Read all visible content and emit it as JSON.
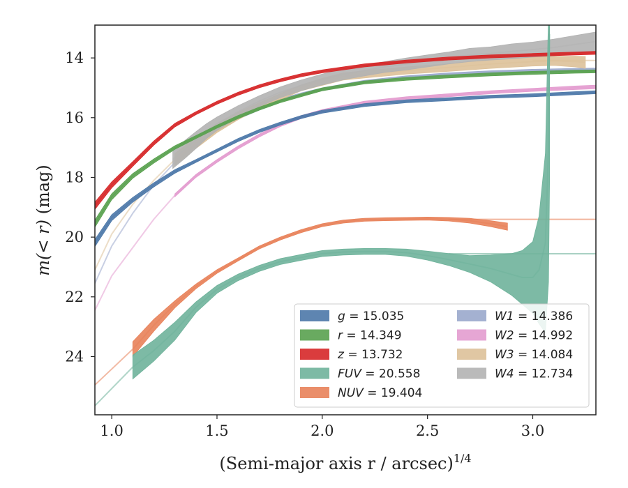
{
  "chart_data": {
    "type": "line",
    "xlabel": "(Semi-major axis r / arcsec)",
    "xlabel_exponent": "1/4",
    "ylabel_prefix": "m(< r) ",
    "ylabel_suffix": "(mag)",
    "xlim": [
      0.92,
      3.3
    ],
    "ylim": [
      25.95,
      12.9
    ],
    "y_inverted": true,
    "xticks": [
      1.0,
      1.5,
      2.0,
      2.5,
      3.0
    ],
    "xtick_labels": [
      "1.0",
      "1.5",
      "2.0",
      "2.5",
      "3.0"
    ],
    "yticks": [
      14,
      16,
      18,
      20,
      22,
      24
    ],
    "ytick_labels": [
      "14",
      "16",
      "18",
      "20",
      "22",
      "24"
    ],
    "grid": false,
    "legend_position": "lower-right",
    "series": [
      {
        "name": "g = 15.035",
        "label": "g",
        "total": "15.035",
        "color": "#4c78a8",
        "x": [
          0.92,
          1.0,
          1.1,
          1.2,
          1.3,
          1.4,
          1.5,
          1.6,
          1.7,
          1.8,
          1.9,
          2.0,
          2.2,
          2.4,
          2.6,
          2.8,
          3.0,
          3.2,
          3.3
        ],
        "y": [
          20.2,
          19.35,
          18.75,
          18.25,
          17.8,
          17.45,
          17.1,
          16.75,
          16.45,
          16.2,
          15.98,
          15.8,
          15.58,
          15.45,
          15.38,
          15.3,
          15.25,
          15.18,
          15.15
        ],
        "halfwidth": [
          0.12,
          0.1,
          0.08,
          0.07,
          0.06,
          0.05,
          0.05,
          0.05,
          0.05,
          0.05,
          0.05,
          0.05,
          0.05,
          0.05,
          0.05,
          0.05,
          0.05,
          0.05,
          0.05
        ]
      },
      {
        "name": "r = 14.349",
        "label": "r",
        "total": "14.349",
        "color": "#59a14f",
        "x": [
          0.92,
          1.0,
          1.1,
          1.2,
          1.3,
          1.4,
          1.5,
          1.6,
          1.7,
          1.8,
          1.9,
          2.0,
          2.2,
          2.4,
          2.6,
          2.8,
          3.0,
          3.2,
          3.3
        ],
        "y": [
          19.55,
          18.65,
          17.95,
          17.45,
          17.0,
          16.65,
          16.3,
          15.98,
          15.7,
          15.45,
          15.25,
          15.05,
          14.82,
          14.7,
          14.62,
          14.55,
          14.5,
          14.46,
          14.45
        ],
        "halfwidth": [
          0.12,
          0.1,
          0.08,
          0.07,
          0.06,
          0.05,
          0.05,
          0.05,
          0.05,
          0.05,
          0.05,
          0.05,
          0.05,
          0.05,
          0.05,
          0.05,
          0.05,
          0.05,
          0.05
        ]
      },
      {
        "name": "z = 13.732",
        "label": "z",
        "total": "13.732",
        "color": "#d62728",
        "x": [
          0.92,
          1.0,
          1.1,
          1.2,
          1.3,
          1.4,
          1.5,
          1.6,
          1.7,
          1.8,
          1.9,
          2.0,
          2.2,
          2.4,
          2.6,
          2.8,
          3.0,
          3.2,
          3.3
        ],
        "y": [
          18.95,
          18.25,
          17.55,
          16.85,
          16.25,
          15.85,
          15.5,
          15.2,
          14.95,
          14.75,
          14.58,
          14.45,
          14.25,
          14.12,
          14.02,
          13.95,
          13.9,
          13.85,
          13.83
        ],
        "halfwidth": [
          0.12,
          0.1,
          0.08,
          0.07,
          0.06,
          0.05,
          0.05,
          0.05,
          0.05,
          0.05,
          0.05,
          0.05,
          0.05,
          0.05,
          0.05,
          0.05,
          0.05,
          0.05,
          0.05
        ]
      },
      {
        "name": "FUV = 20.558",
        "label": "FUV",
        "total": "20.558",
        "color": "#6fb39b",
        "x": [
          1.1,
          1.2,
          1.3,
          1.4,
          1.5,
          1.6,
          1.7,
          1.8,
          1.9,
          2.0,
          2.1,
          2.2,
          2.3,
          2.4,
          2.5,
          2.6,
          2.7,
          2.8,
          2.9,
          2.95,
          3.0,
          3.03,
          3.06,
          3.075,
          3.08
        ],
        "y": [
          24.35,
          23.8,
          23.15,
          22.35,
          21.75,
          21.35,
          21.05,
          20.82,
          20.68,
          20.55,
          20.5,
          20.48,
          20.48,
          20.52,
          20.62,
          20.75,
          20.9,
          21.05,
          21.25,
          21.35,
          21.35,
          21.1,
          20.2,
          17.0,
          13.2
        ],
        "halfwidth": [
          0.4,
          0.35,
          0.3,
          0.18,
          0.13,
          0.11,
          0.1,
          0.1,
          0.1,
          0.1,
          0.1,
          0.1,
          0.1,
          0.12,
          0.15,
          0.2,
          0.28,
          0.45,
          0.7,
          0.9,
          1.2,
          1.8,
          3.0,
          4.5,
          5.0
        ],
        "extrap_x": [
          0.92,
          1.1
        ],
        "extrap_y": [
          25.65,
          24.35
        ],
        "flat_x": [
          2.6,
          3.3
        ],
        "flat_y": 20.558
      },
      {
        "name": "NUV = 19.404",
        "label": "NUV",
        "total": "19.404",
        "color": "#e8825a",
        "x": [
          1.1,
          1.2,
          1.3,
          1.4,
          1.5,
          1.6,
          1.7,
          1.8,
          1.9,
          2.0,
          2.1,
          2.2,
          2.3,
          2.4,
          2.5,
          2.6,
          2.7,
          2.8,
          2.88
        ],
        "y": [
          23.75,
          22.95,
          22.25,
          21.65,
          21.15,
          20.75,
          20.35,
          20.05,
          19.8,
          19.6,
          19.48,
          19.42,
          19.4,
          19.39,
          19.38,
          19.4,
          19.45,
          19.55,
          19.65
        ],
        "halfwidth": [
          0.25,
          0.2,
          0.12,
          0.08,
          0.06,
          0.05,
          0.05,
          0.05,
          0.05,
          0.05,
          0.05,
          0.05,
          0.05,
          0.05,
          0.05,
          0.06,
          0.08,
          0.1,
          0.12
        ],
        "extrap_x": [
          0.92,
          1.1
        ],
        "extrap_y": [
          24.95,
          23.75
        ],
        "flat_x": [
          2.6,
          3.3
        ],
        "flat_y": 19.404
      },
      {
        "name": "W1 = 14.386",
        "label": "W1",
        "total": "14.386",
        "color": "#9aa8cc",
        "x": [
          0.92,
          1.0,
          1.1,
          1.2,
          1.3,
          1.4,
          1.5,
          1.6,
          1.7,
          1.8,
          1.9,
          2.0,
          2.2,
          2.4,
          2.6,
          2.8,
          3.0,
          3.2,
          3.3
        ],
        "y": [
          21.55,
          20.3,
          19.2,
          18.25,
          17.5,
          16.9,
          16.4,
          16.0,
          15.7,
          15.42,
          15.22,
          15.05,
          14.8,
          14.65,
          14.55,
          14.48,
          14.43,
          14.4,
          14.39
        ],
        "halfwidth": [
          0.05,
          0.05,
          0.05,
          0.05,
          0.05,
          0.05,
          0.05,
          0.05,
          0.05,
          0.05,
          0.05,
          0.05,
          0.05,
          0.05,
          0.05,
          0.05,
          0.05,
          0.05,
          0.05
        ],
        "band_from": 1.3
      },
      {
        "name": "W2 = 14.992",
        "label": "W2",
        "total": "14.992",
        "color": "#e39ccf",
        "x": [
          0.92,
          1.0,
          1.1,
          1.2,
          1.3,
          1.4,
          1.5,
          1.6,
          1.7,
          1.8,
          1.9,
          2.0,
          2.2,
          2.4,
          2.6,
          2.8,
          3.0,
          3.2,
          3.3
        ],
        "y": [
          22.45,
          21.3,
          20.35,
          19.4,
          18.6,
          17.95,
          17.45,
          17.0,
          16.6,
          16.25,
          15.98,
          15.78,
          15.5,
          15.35,
          15.25,
          15.15,
          15.07,
          15.0,
          14.97
        ],
        "halfwidth": [
          0.05,
          0.05,
          0.05,
          0.05,
          0.05,
          0.05,
          0.05,
          0.05,
          0.05,
          0.05,
          0.05,
          0.05,
          0.05,
          0.05,
          0.05,
          0.05,
          0.05,
          0.06,
          0.06
        ],
        "band_from": 1.3
      },
      {
        "name": "W3 = 14.084",
        "label": "W3",
        "total": "14.084",
        "color": "#ddc199",
        "x": [
          0.92,
          1.0,
          1.1,
          1.2,
          1.3,
          1.4,
          1.5,
          1.6,
          1.7,
          1.8,
          1.9,
          2.0,
          2.1,
          2.2,
          2.4,
          2.6,
          2.8,
          3.0,
          3.1,
          3.2,
          3.25
        ],
        "y": [
          21.1,
          19.9,
          18.9,
          18.1,
          17.4,
          16.85,
          16.35,
          15.95,
          15.6,
          15.3,
          15.0,
          14.8,
          14.62,
          14.55,
          14.42,
          14.32,
          14.2,
          14.12,
          14.1,
          14.12,
          14.15
        ],
        "halfwidth": [
          0.05,
          0.05,
          0.05,
          0.05,
          0.2,
          0.18,
          0.15,
          0.12,
          0.1,
          0.1,
          0.1,
          0.12,
          0.12,
          0.12,
          0.12,
          0.13,
          0.15,
          0.15,
          0.15,
          0.18,
          0.2
        ],
        "band_from": 1.3,
        "flat_x": [
          3.0,
          3.3
        ],
        "flat_y": 14.084
      },
      {
        "name": "W4 = 12.734",
        "label": "W4",
        "total": "12.734",
        "color": "#b2b2b2",
        "x": [
          1.29,
          1.35,
          1.4,
          1.45,
          1.5,
          1.6,
          1.7,
          1.8,
          1.9,
          2.0,
          2.1,
          2.2,
          2.3,
          2.4,
          2.5,
          2.6,
          2.7,
          2.8,
          2.9,
          3.0,
          3.1,
          3.2,
          3.3
        ],
        "y": [
          17.4,
          17.05,
          16.75,
          16.45,
          16.2,
          15.8,
          15.45,
          15.15,
          14.92,
          14.72,
          14.55,
          14.42,
          14.3,
          14.2,
          14.1,
          14.0,
          13.9,
          13.85,
          13.78,
          13.72,
          13.65,
          13.55,
          13.45
        ],
        "halfwidth": [
          0.3,
          0.3,
          0.28,
          0.25,
          0.22,
          0.2,
          0.18,
          0.18,
          0.18,
          0.18,
          0.18,
          0.18,
          0.18,
          0.2,
          0.2,
          0.2,
          0.22,
          0.22,
          0.25,
          0.25,
          0.28,
          0.3,
          0.32
        ],
        "band_from": 1.29
      }
    ]
  }
}
